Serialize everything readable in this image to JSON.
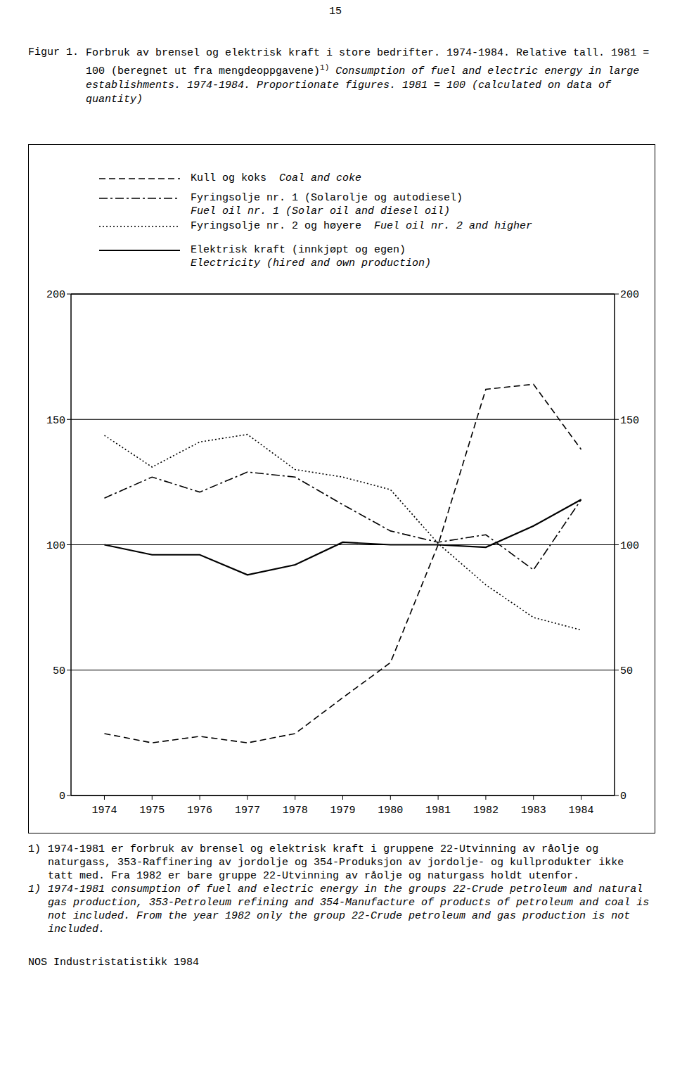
{
  "page_number": "15",
  "figure_label": "Figur 1.",
  "title_no": "Forbruk av brensel og elektrisk kraft i store bedrifter.  1974-1984.  Relative tall. 1981 = 100 (beregnet ut fra mengdeoppgavene)",
  "title_mark": "1)",
  "title_en": "Consumption of fuel and electric energy in large establishments. 1974-1984. Proportionate figures. 1981 = 100 (calculated on data of quantity)",
  "chart_data": {
    "type": "line",
    "x": [
      1974,
      1975,
      1976,
      1977,
      1978,
      1979,
      1980,
      1981,
      1982,
      1983,
      1984
    ],
    "xlim": [
      1973.3,
      1984.7
    ],
    "xticks": [
      1974,
      1975,
      1976,
      1977,
      1978,
      1979,
      1980,
      1981,
      1982,
      1983,
      1984
    ],
    "ylim": [
      0,
      200
    ],
    "yticks": [
      0,
      50,
      100,
      150,
      200
    ],
    "grid": true,
    "series": [
      {
        "name": "Kull og koks",
        "name_en": "Coal and coke",
        "color": "#000000",
        "line_style": "dashed",
        "values": [
          24.7,
          21,
          23.6,
          21,
          24.7,
          39,
          53,
          100,
          162,
          164,
          138
        ]
      },
      {
        "name": "Fyringsolje nr. 1 (Solarolje og autodiesel)",
        "name_en": "Fuel oil nr. 1 (Solar oil and diesel oil)",
        "color": "#000000",
        "line_style": "dashdot",
        "values": [
          118.6,
          127,
          121,
          129,
          127,
          116,
          105.5,
          101,
          104,
          90,
          118
        ]
      },
      {
        "name": "Fyringsolje nr. 2 og høyere",
        "name_en": "Fuel oil nr. 2 and higher",
        "color": "#000000",
        "line_style": "dotted",
        "values": [
          143.6,
          131,
          141,
          144,
          130,
          127,
          122,
          100.5,
          84,
          71,
          66
        ]
      },
      {
        "name": "Elektrisk kraft (innkjøpt og egen)",
        "name_en": "Electricity (hired and own production)",
        "color": "#000000",
        "line_style": "solid",
        "values": [
          100,
          96,
          96,
          88,
          92,
          101,
          100,
          100,
          99,
          107.5,
          118
        ]
      }
    ]
  },
  "footnote": {
    "mark": "1)",
    "text_no": "1974-1981 er forbruk av brensel og elektrisk kraft i gruppene 22-Utvinning av råolje og naturgass, 353-Raffinering av jordolje og 354-Produksjon av jordolje- og kullprodukter ikke tatt med. Fra 1982 er bare gruppe 22-Utvinning av råolje og naturgass holdt utenfor.",
    "text_en": "1974-1981 consumption of fuel and electric energy in the groups 22-Crude petroleum and natural gas production, 353-Petroleum refining and 354-Manufacture of products of petroleum and coal is not included. From the year 1982 only the group 22-Crude petroleum and gas production is not included."
  },
  "source": "NOS Industristatistikk 1984"
}
